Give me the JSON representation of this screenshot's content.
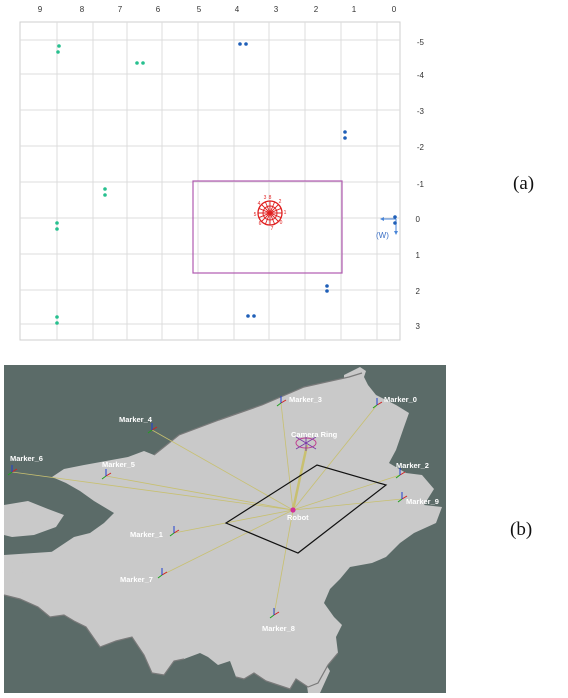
{
  "panel_a": {
    "caption": "(a)",
    "x_ticks": [
      "9",
      "8",
      "7",
      "6",
      "5",
      "4",
      "3",
      "2",
      "1",
      "0"
    ],
    "y_ticks": [
      "-5",
      "-4",
      "-3",
      "-2",
      "-1",
      "0",
      "1",
      "2",
      "3"
    ],
    "world_frame_label": "(W)",
    "ring_numbers": [
      "0",
      "1",
      "2",
      "3",
      "4",
      "5",
      "6",
      "7",
      "8"
    ],
    "colors": {
      "grid": "#d9d9d9",
      "rect": "#b05ab0",
      "marker_blue": "#1f5fb8",
      "marker_green": "#27c08f",
      "ring": "#e02020",
      "frame": "#4a86d8"
    }
  },
  "panel_b": {
    "caption": "(b)",
    "labels": {
      "marker_0": "Marker_0",
      "marker_1": "Marker_1",
      "marker_2": "Marker_2",
      "marker_3": "Marker_3",
      "marker_4": "Marker_4",
      "marker_5": "Marker_5",
      "marker_6": "Marker_6",
      "marker_7": "Marker_7",
      "marker_8": "Marker_8",
      "marker_9": "Marker_9",
      "camera_ring": "Camera Ring",
      "robot": "Robot"
    },
    "colors": {
      "background": "#5b6b68",
      "map": "#c9c9c9",
      "rays": "#c8c070",
      "rect": "#111111"
    }
  }
}
